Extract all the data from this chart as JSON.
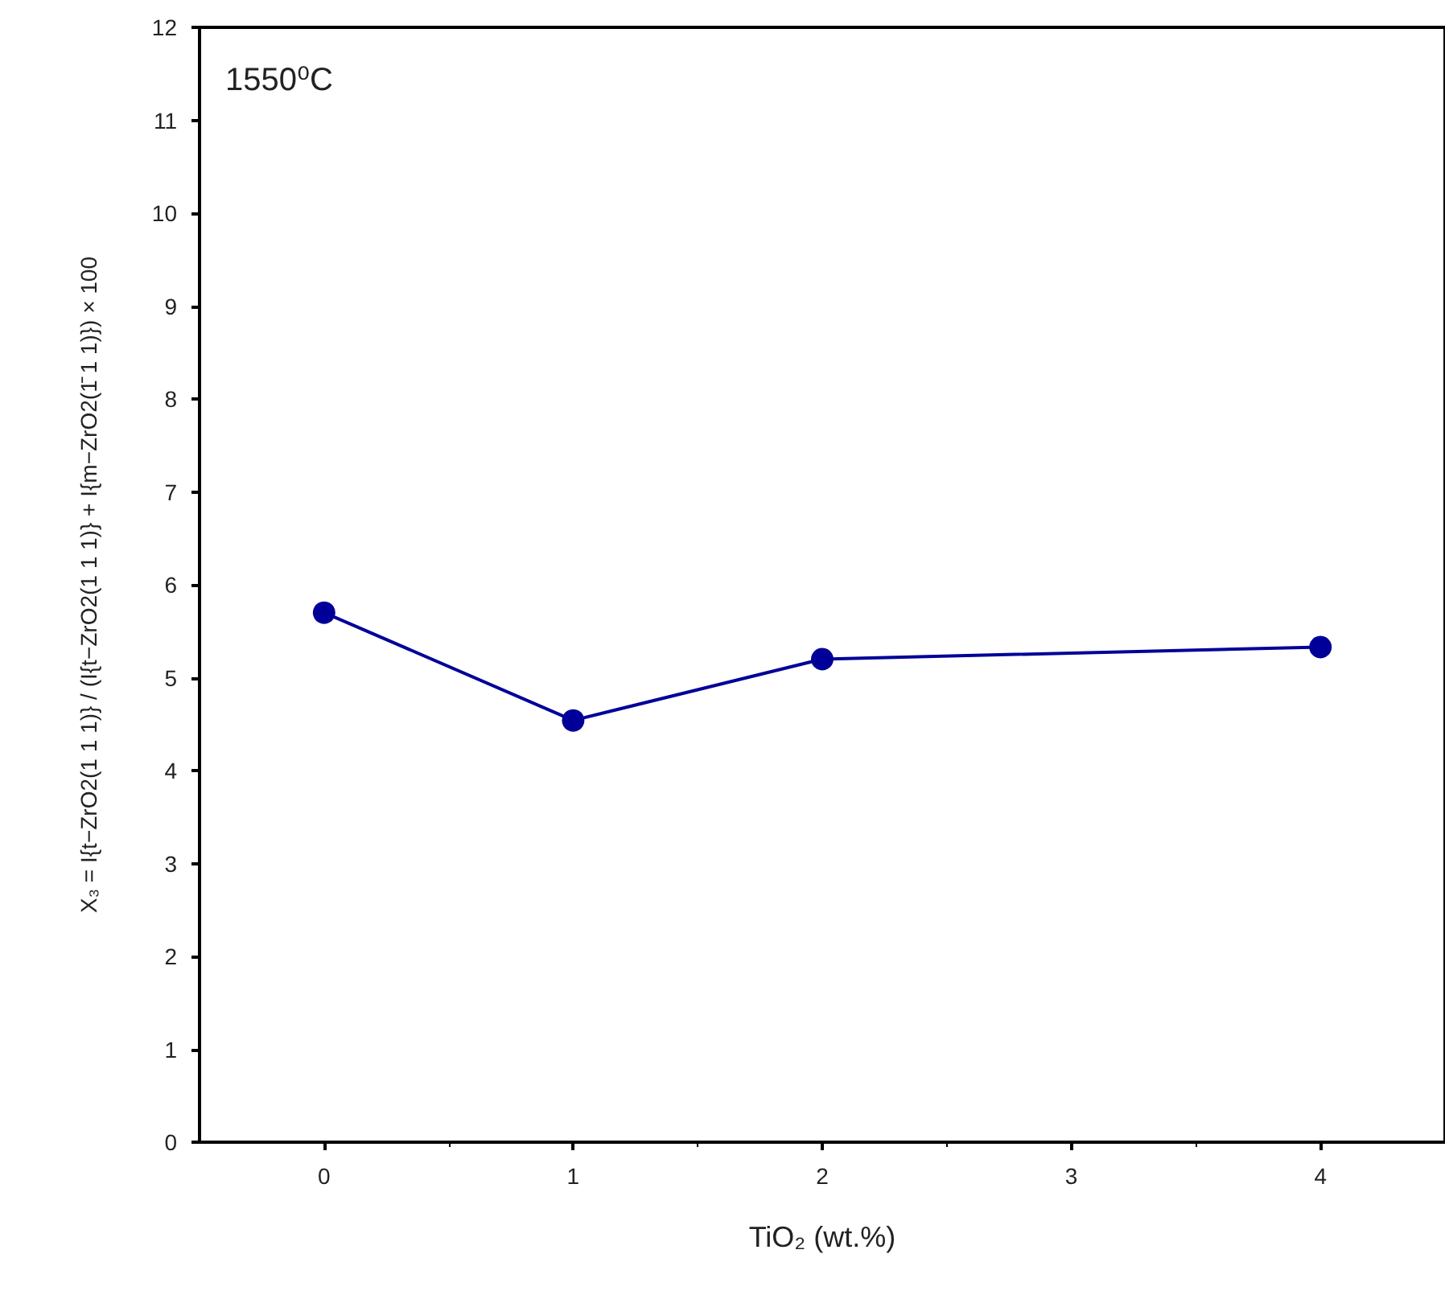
{
  "chart_data": {
    "type": "line",
    "xlabel": "TiO₂ (wt.%)",
    "ylabel": "X₃ = I{t−ZrO2(1 1 1)} / (I{t−ZrO2(1 1 1)} + I{m−ZrO2(1̄ 1 1)}) × 100",
    "annotations": [
      "1550⁰C"
    ],
    "x": [
      0,
      1,
      2,
      4
    ],
    "series": [
      {
        "color": "#000099",
        "values": [
          5.7,
          4.54,
          5.2,
          5.33
        ]
      }
    ],
    "xlim": [
      -0.5,
      4.5
    ],
    "xticks": [
      0,
      1,
      2,
      3,
      4
    ],
    "ylim": [
      0,
      12
    ],
    "yticks": [
      0,
      1,
      2,
      3,
      4,
      5,
      6,
      7,
      8,
      9,
      10,
      11,
      12
    ],
    "marker": "circle",
    "line_style": "solid",
    "grid": false
  }
}
